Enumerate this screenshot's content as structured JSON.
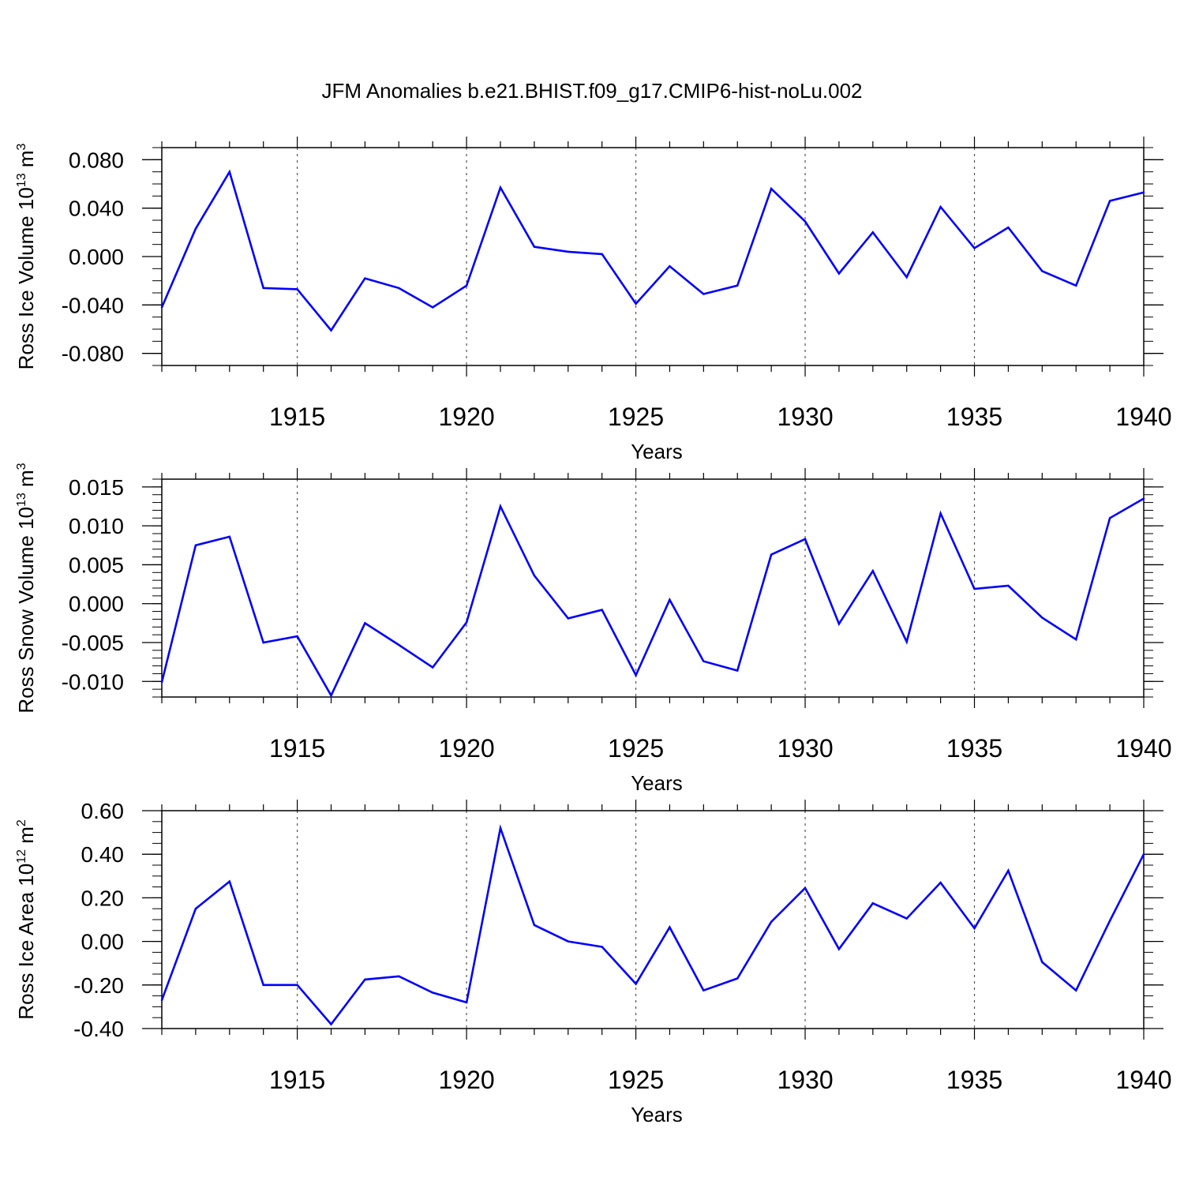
{
  "page": {
    "title": "JFM Anomalies b.e21.BHIST.f09_g17.CMIP6-hist-noLu.002"
  },
  "chart_data": [
    {
      "type": "line",
      "id": "ice-volume",
      "ylabel": "Ross Ice Volume 10",
      "ylabel_exp": "13",
      "ylabel_unit": " m",
      "ylabel_unit_exp": "3",
      "xlabel": "Years",
      "xlim": [
        1911,
        1940
      ],
      "ylim": [
        -0.09,
        0.09
      ],
      "yticks": [
        -0.08,
        -0.04,
        0.0,
        0.04,
        0.08
      ],
      "yticklabels": [
        "-0.080",
        "-0.040",
        "0.000",
        "0.040",
        "0.080"
      ],
      "yminor_step": 0.01,
      "xticks": [
        1915,
        1920,
        1925,
        1930,
        1935,
        1940
      ],
      "xticklabels": [
        "1915",
        "1920",
        "1925",
        "1930",
        "1935",
        "1940"
      ],
      "color": "#0000ff",
      "series": [
        {
          "name": "Ross Ice Volume",
          "x": [
            1911,
            1912,
            1913,
            1914,
            1915,
            1916,
            1917,
            1918,
            1919,
            1920,
            1921,
            1922,
            1923,
            1924,
            1925,
            1926,
            1927,
            1928,
            1929,
            1930,
            1931,
            1932,
            1933,
            1934,
            1935,
            1936,
            1937,
            1938,
            1939,
            1940
          ],
          "values": [
            -0.042,
            0.023,
            0.07,
            -0.026,
            -0.027,
            -0.061,
            -0.018,
            -0.026,
            -0.042,
            -0.024,
            0.057,
            0.008,
            0.004,
            0.002,
            -0.039,
            -0.008,
            -0.031,
            -0.024,
            0.056,
            0.029,
            -0.014,
            0.02,
            -0.017,
            0.041,
            0.007,
            0.024,
            -0.012,
            -0.024,
            0.046,
            0.053
          ]
        }
      ]
    },
    {
      "type": "line",
      "id": "snow-volume",
      "ylabel": "Ross Snow Volume 10",
      "ylabel_exp": "13",
      "ylabel_unit": " m",
      "ylabel_unit_exp": "3",
      "xlabel": "Years",
      "xlim": [
        1911,
        1940
      ],
      "ylim": [
        -0.012,
        0.016
      ],
      "yticks": [
        -0.01,
        -0.005,
        0.0,
        0.005,
        0.01,
        0.015
      ],
      "yticklabels": [
        "-0.010",
        "-0.005",
        "0.000",
        "0.005",
        "0.010",
        "0.015"
      ],
      "yminor_step": 0.001,
      "xticks": [
        1915,
        1920,
        1925,
        1930,
        1935,
        1940
      ],
      "xticklabels": [
        "1915",
        "1920",
        "1925",
        "1930",
        "1935",
        "1940"
      ],
      "color": "#0000ff",
      "series": [
        {
          "name": "Ross Snow Volume",
          "x": [
            1911,
            1912,
            1913,
            1914,
            1915,
            1916,
            1917,
            1918,
            1919,
            1920,
            1921,
            1922,
            1923,
            1924,
            1925,
            1926,
            1927,
            1928,
            1929,
            1930,
            1931,
            1932,
            1933,
            1934,
            1935,
            1936,
            1937,
            1938,
            1939,
            1940
          ],
          "values": [
            -0.0101,
            0.0075,
            0.0086,
            -0.005,
            -0.0042,
            -0.0118,
            -0.0025,
            -0.0053,
            -0.0082,
            -0.0024,
            0.0125,
            0.0036,
            -0.0019,
            -0.0008,
            -0.0092,
            0.0005,
            -0.0074,
            -0.0086,
            0.0063,
            0.0083,
            -0.0026,
            0.0042,
            -0.0049,
            0.0116,
            0.0019,
            0.0023,
            -0.0018,
            -0.0046,
            0.011,
            0.0135
          ]
        }
      ]
    },
    {
      "type": "line",
      "id": "ice-area",
      "ylabel": "Ross Ice Area 10",
      "ylabel_exp": "12",
      "ylabel_unit": " m",
      "ylabel_unit_exp": "2",
      "xlabel": "Years",
      "xlim": [
        1911,
        1940
      ],
      "ylim": [
        -0.4,
        0.6
      ],
      "yticks": [
        -0.4,
        -0.2,
        0.0,
        0.2,
        0.4,
        0.6
      ],
      "yticklabels": [
        "-0.40",
        "-0.20",
        "0.00",
        "0.20",
        "0.40",
        "0.60"
      ],
      "yminor_step": 0.05,
      "xticks": [
        1915,
        1920,
        1925,
        1930,
        1935,
        1940
      ],
      "xticklabels": [
        "1915",
        "1920",
        "1925",
        "1930",
        "1935",
        "1940"
      ],
      "color": "#0000ff",
      "series": [
        {
          "name": "Ross Ice Area",
          "x": [
            1911,
            1912,
            1913,
            1914,
            1915,
            1916,
            1917,
            1918,
            1919,
            1920,
            1921,
            1922,
            1923,
            1924,
            1925,
            1926,
            1927,
            1928,
            1929,
            1930,
            1931,
            1932,
            1933,
            1934,
            1935,
            1936,
            1937,
            1938,
            1939,
            1940
          ],
          "values": [
            -0.27,
            0.15,
            0.275,
            -0.2,
            -0.2,
            -0.38,
            -0.175,
            -0.16,
            -0.235,
            -0.28,
            0.52,
            0.075,
            0.0,
            -0.025,
            -0.195,
            0.065,
            -0.225,
            -0.17,
            0.09,
            0.245,
            -0.035,
            0.175,
            0.105,
            0.27,
            0.06,
            0.325,
            -0.095,
            -0.225,
            0.095,
            0.4
          ]
        }
      ]
    }
  ]
}
